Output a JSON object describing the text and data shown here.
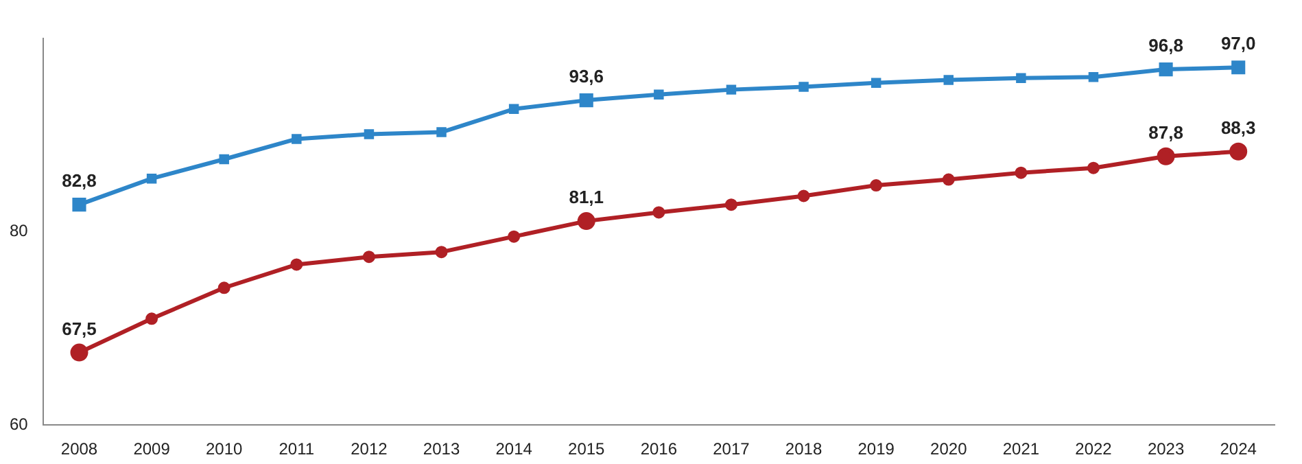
{
  "chart_data": {
    "type": "line",
    "categories": [
      "2008",
      "2009",
      "2010",
      "2011",
      "2012",
      "2013",
      "2014",
      "2015",
      "2016",
      "2017",
      "2018",
      "2019",
      "2020",
      "2021",
      "2022",
      "2023",
      "2024"
    ],
    "series": [
      {
        "color": "#2e86c9",
        "marker": "square",
        "values": [
          82.8,
          85.5,
          87.5,
          89.6,
          90.1,
          90.3,
          92.7,
          93.6,
          94.2,
          94.7,
          95.0,
          95.4,
          95.7,
          95.9,
          96.0,
          96.8,
          97.0
        ],
        "value_labels": [
          "82,8",
          null,
          null,
          null,
          null,
          null,
          null,
          "93,6",
          null,
          null,
          null,
          null,
          null,
          null,
          null,
          "96,8",
          "97,0"
        ]
      },
      {
        "color": "#b02025",
        "marker": "circle",
        "values": [
          67.5,
          71.0,
          74.2,
          76.6,
          77.4,
          77.9,
          79.5,
          81.1,
          82.0,
          82.8,
          83.7,
          84.8,
          85.4,
          86.1,
          86.6,
          87.8,
          88.3
        ],
        "value_labels": [
          "67,5",
          null,
          null,
          null,
          null,
          null,
          null,
          "81,1",
          null,
          null,
          null,
          null,
          null,
          null,
          null,
          "87,8",
          "88,3"
        ]
      }
    ],
    "ylim": [
      60,
      100
    ],
    "yticks": [
      60,
      80
    ],
    "grid": false,
    "legend": false
  }
}
